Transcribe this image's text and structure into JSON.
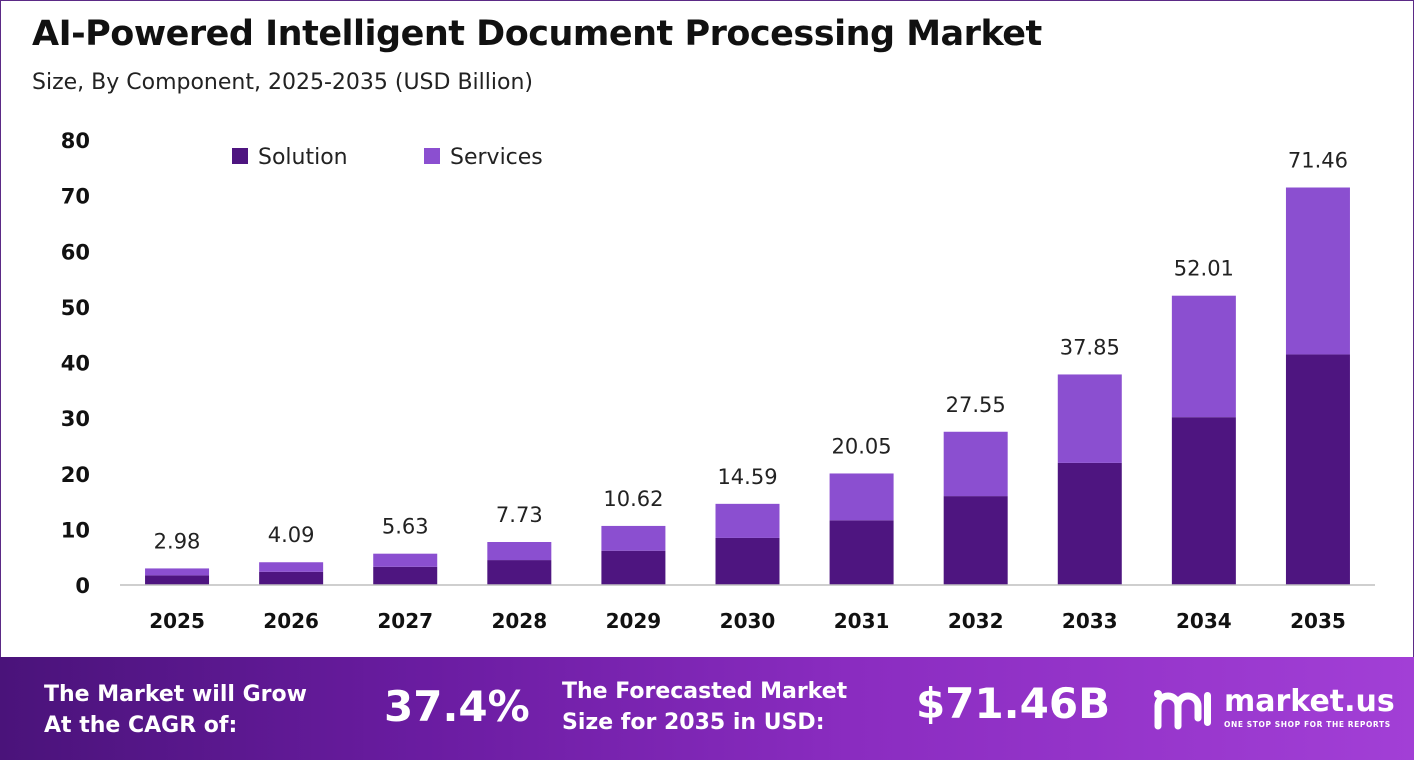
{
  "header": {
    "title": "AI-Powered Intelligent Document Processing Market",
    "subtitle": "Size, By Component, 2025-2035 (USD Billion)"
  },
  "chart_data": {
    "type": "bar",
    "stacked": true,
    "categories": [
      "2025",
      "2026",
      "2027",
      "2028",
      "2029",
      "2030",
      "2031",
      "2032",
      "2033",
      "2034",
      "2035"
    ],
    "series": [
      {
        "name": "Solution",
        "color": "#4e1580",
        "values": [
          1.73,
          2.37,
          3.27,
          4.48,
          6.16,
          8.46,
          11.63,
          15.98,
          21.95,
          30.17,
          41.45
        ]
      },
      {
        "name": "Services",
        "color": "#8b4fd0",
        "values": [
          1.25,
          1.72,
          2.36,
          3.25,
          4.46,
          6.13,
          8.42,
          11.57,
          15.9,
          21.84,
          30.01
        ]
      }
    ],
    "totals": [
      "2.98",
      "4.09",
      "5.63",
      "7.73",
      "10.62",
      "14.59",
      "20.05",
      "27.55",
      "37.85",
      "52.01",
      "71.46"
    ],
    "ylim": [
      0,
      80
    ],
    "yticks": [
      "0",
      "10",
      "20",
      "30",
      "40",
      "50",
      "60",
      "70",
      "80"
    ],
    "grid": false,
    "legend_position": "top-left"
  },
  "footer": {
    "cagr_label_line1": "The Market will Grow",
    "cagr_label_line2": "At the CAGR of:",
    "cagr_value": "37.4%",
    "forecast_label_line1": "The Forecasted Market",
    "forecast_label_line2": "Size for 2035 in USD:",
    "forecast_value": "$71.46B",
    "brand_name": "market.us",
    "brand_tagline": "ONE STOP SHOP FOR THE REPORTS",
    "logo_icon": "market-us-logo-icon"
  }
}
